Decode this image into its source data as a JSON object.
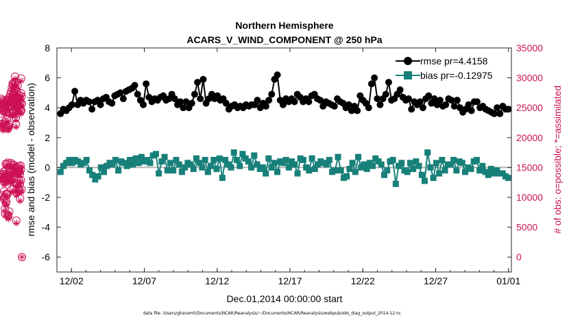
{
  "chart_data": {
    "type": "line",
    "title": "Northern Hemisphere",
    "subtitle": "ACARS_V_WIND_COMPONENT @ 250 hPa",
    "xlabel": "Dec.01,2014 00:00:00 start",
    "ylabel_left": "rmse and bias (model - observation)",
    "ylabel_right": "# of obs: o=possible; *=assimilated",
    "footnote": "data file: /Users/gharamti/Documents/NCAR/Reanalysis/~/Documents/NCAR/Reanalysis/webpub/obs_diag_output_2014-12.nc",
    "x_start_day": 1,
    "x_end_day": 32.2,
    "xticks": [
      {
        "day": 2,
        "label": "12/02"
      },
      {
        "day": 7,
        "label": "12/07"
      },
      {
        "day": 12,
        "label": "12/12"
      },
      {
        "day": 17,
        "label": "12/17"
      },
      {
        "day": 22,
        "label": "12/22"
      },
      {
        "day": 27,
        "label": "12/27"
      },
      {
        "day": 32,
        "label": "01/01"
      }
    ],
    "ylim_left": [
      -7,
      8
    ],
    "yticks_left": [
      -6,
      -4,
      -2,
      0,
      2,
      4,
      6,
      8
    ],
    "ylim_right": [
      -2500,
      35000
    ],
    "yticks_right": [
      0,
      5000,
      10000,
      15000,
      20000,
      25000,
      30000,
      35000
    ],
    "zero_line": 0,
    "legend": {
      "position": "top-right",
      "entries": [
        "rmse pr=4.4158",
        "bias pr=-0.12975"
      ]
    },
    "series": [
      {
        "name": "rmse",
        "label": "rmse pr=4.4158",
        "color": "#000000",
        "marker": "circle",
        "values": [
          3.6,
          3.9,
          3.8,
          4.0,
          4.2,
          5.1,
          4.2,
          4.5,
          4.3,
          4.5,
          4.4,
          3.9,
          4.4,
          4.5,
          4.2,
          4.6,
          4.7,
          4.4,
          4.3,
          4.8,
          4.9,
          5.0,
          4.6,
          5.1,
          5.2,
          5.3,
          5.5,
          4.9,
          4.5,
          4.2,
          5.6,
          4.7,
          4.4,
          4.6,
          4.5,
          4.7,
          4.8,
          4.5,
          4.6,
          4.9,
          4.6,
          4.2,
          4.4,
          4.0,
          4.4,
          4.0,
          4.3,
          4.9,
          5.7,
          4.6,
          5.9,
          4.3,
          4.6,
          4.9,
          4.6,
          4.8,
          4.5,
          4.6,
          4.3,
          3.9,
          4.1,
          4.2,
          4.0,
          4.1,
          4.0,
          4.2,
          4.1,
          4.2,
          4.2,
          4.5,
          4.0,
          4.3,
          4.1,
          4.5,
          4.9,
          5.9,
          6.2,
          4.5,
          4.2,
          4.6,
          4.4,
          4.6,
          4.4,
          4.9,
          4.7,
          4.4,
          4.6,
          4.4,
          4.8,
          4.9,
          4.6,
          4.5,
          4.1,
          4.4,
          4.3,
          4.2,
          4.1,
          4.6,
          4.4,
          4.3,
          4.0,
          4.2,
          3.8,
          4.1,
          3.8,
          4.8,
          4.5,
          4.3,
          4.0,
          5.6,
          6.0,
          4.6,
          4.2,
          4.6,
          4.9,
          5.7,
          4.5,
          4.6,
          4.9,
          5.2,
          4.7,
          4.5,
          4.6,
          3.9,
          4.4,
          4.2,
          4.4,
          4.0,
          4.6,
          4.8,
          4.3,
          4.6,
          4.2,
          4.5,
          4.1,
          4.2,
          4.6,
          4.5,
          4.1,
          4.5,
          4.0,
          3.7,
          3.9,
          4.2,
          3.8,
          4.4,
          4.4,
          4.0,
          4.1,
          3.9,
          3.8,
          3.7,
          3.6,
          4.0,
          3.6,
          4.1,
          3.9,
          3.9
        ]
      },
      {
        "name": "bias",
        "label": "bias pr=-0.12975",
        "color": "#178079",
        "marker": "square",
        "values": [
          -0.3,
          0.1,
          0.3,
          0.5,
          0.3,
          0.5,
          0.4,
          0.2,
          0.3,
          0.5,
          -0.2,
          -0.5,
          -0.8,
          -0.6,
          0.0,
          -0.3,
          0.1,
          0.3,
          0.2,
          0.5,
          -0.2,
          0.4,
          0.3,
          0.1,
          0.5,
          0.2,
          0.6,
          0.3,
          0.7,
          0.4,
          0.5,
          0.3,
          0.8,
          0.9,
          -0.4,
          0.4,
          0.7,
          -0.2,
          0.3,
          -0.2,
          0.5,
          0.2,
          -0.3,
          0.0,
          0.3,
          0.2,
          -0.1,
          0.6,
          0.3,
          0.0,
          0.5,
          -0.3,
          0.1,
          0.5,
          -0.1,
          0.6,
          -0.7,
          0.5,
          0.2,
          0.0,
          1.0,
          0.5,
          0.1,
          0.9,
          0.6,
          0.4,
          0.0,
          0.8,
          0.2,
          -0.1,
          0.0,
          -0.4,
          0.6,
          0.0,
          0.3,
          -0.3,
          0.4,
          0.3,
          0.5,
          0.0,
          0.4,
          0.2,
          -0.4,
          0.6,
          0.5,
          0.0,
          -0.2,
          0.6,
          -0.1,
          0.2,
          0.4,
          0.3,
          0.2,
          0.5,
          -0.3,
          -0.2,
          0.7,
          -0.2,
          -0.7,
          -0.6,
          -0.1,
          0.3,
          -0.3,
          0.7,
          0.0,
          0.2,
          -0.1,
          0.3,
          0.1,
          0.6,
          0.4,
          0.2,
          -0.5,
          -0.2,
          0.4,
          0.5,
          -1.1,
          0.1,
          0.3,
          -0.2,
          -0.3,
          0.3,
          -0.1,
          0.4,
          0.1,
          -0.5,
          -0.9,
          1.0,
          0.0,
          -0.7,
          0.3,
          -0.4,
          0.5,
          -0.2,
          0.2,
          0.2,
          0.5,
          -0.2,
          0.4,
          0.3,
          -0.3,
          0.0,
          -0.1,
          0.4,
          0.5,
          -0.2,
          0.1,
          -0.3,
          -0.5,
          -0.1,
          -0.4,
          -0.2,
          -0.4,
          -0.4,
          -0.6,
          -0.7
        ]
      },
      {
        "name": "possible",
        "label": "o=possible",
        "color": "#cc1155",
        "marker": "circle-open",
        "axis": "right",
        "values": [
          26500,
          24800,
          13400,
          10300,
          25800,
          13800,
          25600,
          22300,
          13400,
          22800,
          26000,
          13100,
          25600,
          21900,
          26300,
          13500,
          25500,
          21600,
          26100,
          25600,
          13900,
          24400,
          14300,
          11000,
          9700,
          22200,
          12500,
          13300,
          22600,
          8100,
          7300,
          25800,
          12800,
          14500,
          24900,
          15600,
          9000,
          26100,
          24200,
          9300,
          10600,
          25600,
          13200,
          15500,
          23100,
          25200,
          10500,
          13700,
          25700,
          26300,
          15800,
          21600,
          21900,
          7000,
          6800,
          26600,
          13900,
          21800,
          25000,
          14100,
          7600,
          22200,
          13600,
          15600,
          13500,
          26300,
          26800,
          14200,
          24000,
          27300,
          12900,
          26500,
          25900,
          12800,
          27700,
          15700,
          11300,
          25900,
          13100,
          28300,
          26400,
          15400,
          24300,
          26200,
          29000,
          14400,
          28800,
          24300,
          13200,
          26600,
          11400,
          24200,
          27500,
          14100,
          25600,
          15400,
          29300,
          25800,
          27200,
          27200,
          14900,
          25400,
          30200,
          14400,
          29100,
          28000,
          24000,
          23300,
          15100,
          22200,
          29300,
          6100,
          10700,
          11400,
          24600,
          27700,
          12300,
          14300,
          25200,
          12200,
          28700,
          24800,
          25000,
          26500,
          15000,
          26300,
          14300,
          11200,
          26600,
          12900,
          26100,
          15200,
          27100,
          24800,
          14300,
          11200,
          13900,
          12300,
          9800,
          25700,
          25900,
          15300,
          24400,
          12900,
          14700,
          29900,
          27400,
          24600,
          11300,
          26900,
          25700,
          0
        ]
      },
      {
        "name": "assimilated",
        "label": "*=assimilated",
        "color": "#cc1155",
        "marker": "asterisk",
        "values": [
          26000,
          24400,
          13000,
          10000,
          25300,
          13400,
          25200,
          21900,
          13000,
          22400,
          25600,
          12700,
          25200,
          21500,
          25900,
          13100,
          25100,
          21200,
          25700,
          25200,
          13500,
          24000,
          13900,
          10600,
          9300,
          21800,
          12100,
          12900,
          22200,
          7700,
          6900,
          25400,
          12400,
          14100,
          24500,
          15200,
          8600,
          25700,
          23800,
          8900,
          10200,
          25200,
          12800,
          15100,
          22700,
          24800,
          10100,
          13300,
          25300,
          25900,
          15400,
          21200,
          21500,
          6600,
          6400,
          26200,
          13500,
          21400,
          24600,
          13700,
          7200,
          21800,
          13200,
          15200,
          13100,
          25900,
          26400,
          13800,
          23600,
          26900,
          12500,
          26100,
          25500,
          12400,
          27300,
          15300,
          10900,
          25500,
          12700,
          27900,
          26000,
          15000,
          23900,
          25800,
          28600,
          14000,
          28400,
          23900,
          12800,
          26200,
          11000,
          23800,
          27100,
          13700,
          25200,
          15000,
          28900,
          25400,
          26800,
          26800,
          14500,
          25000,
          29800,
          14000,
          28700,
          27600,
          23600,
          22900,
          14700,
          21800,
          28900,
          5700,
          10300,
          11000,
          24200,
          27300,
          11900,
          13900,
          24800,
          11800,
          28300,
          24400,
          24600,
          26100,
          14600,
          25900,
          13900,
          10800,
          26200,
          12500,
          25700,
          14800,
          26700,
          24400,
          13900,
          10800,
          13500,
          11900,
          9400,
          25300,
          25500,
          14900,
          24000,
          12500,
          14300,
          29500,
          27000,
          24200,
          10900,
          26500,
          25300,
          0
        ]
      }
    ]
  }
}
